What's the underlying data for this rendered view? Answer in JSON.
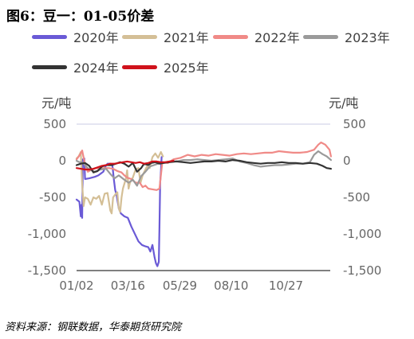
{
  "title": "图6：豆一：01-05价差",
  "source": "资料来源：钢联数据，华泰期货研究院",
  "chart_data": {
    "type": "line",
    "y_unit_left": "元/吨",
    "y_unit_right": "元/吨",
    "ylim": [
      -1500,
      500
    ],
    "yticks": [
      500,
      0,
      -500,
      -1000,
      -1500
    ],
    "ytick_labels": [
      "500",
      "0",
      "-500",
      "-1,000",
      "-1,500"
    ],
    "xlim": [
      2,
      363
    ],
    "xticks": [
      2,
      75,
      149,
      222,
      300
    ],
    "xtick_labels": [
      "01/02",
      "03/16",
      "05/29",
      "08/10",
      "10/27"
    ],
    "grid": false,
    "legend_position": "top",
    "series": [
      {
        "name": "2020年",
        "color": "#6a5ad6",
        "points": [
          [
            2,
            -530
          ],
          [
            6,
            -560
          ],
          [
            8,
            -760
          ],
          [
            9,
            -600
          ],
          [
            10,
            -780
          ],
          [
            11,
            20
          ],
          [
            13,
            30
          ],
          [
            14,
            -250
          ],
          [
            20,
            -240
          ],
          [
            28,
            -220
          ],
          [
            33,
            -200
          ],
          [
            40,
            -150
          ],
          [
            43,
            -80
          ],
          [
            46,
            -40
          ],
          [
            50,
            -40
          ],
          [
            53,
            -60
          ],
          [
            55,
            -250
          ],
          [
            57,
            -400
          ],
          [
            59,
            -470
          ],
          [
            62,
            -650
          ],
          [
            65,
            -720
          ],
          [
            70,
            -760
          ],
          [
            75,
            -780
          ],
          [
            80,
            -900
          ],
          [
            90,
            -1100
          ],
          [
            95,
            -1150
          ],
          [
            100,
            -1170
          ],
          [
            104,
            -1180
          ],
          [
            107,
            -1240
          ],
          [
            110,
            -1150
          ],
          [
            113,
            -1320
          ],
          [
            115,
            -1400
          ],
          [
            117,
            -1440
          ],
          [
            119,
            -1380
          ],
          [
            120,
            -900
          ],
          [
            121,
            -300
          ],
          [
            122,
            -150
          ],
          [
            123,
            50
          ]
        ]
      },
      {
        "name": "2021年",
        "color": "#d4bf96",
        "points": [
          [
            2,
            30
          ],
          [
            5,
            60
          ],
          [
            8,
            120
          ],
          [
            10,
            -320
          ],
          [
            12,
            -620
          ],
          [
            14,
            -500
          ],
          [
            18,
            -520
          ],
          [
            22,
            -600
          ],
          [
            26,
            -500
          ],
          [
            30,
            -520
          ],
          [
            34,
            -480
          ],
          [
            38,
            -600
          ],
          [
            42,
            -450
          ],
          [
            46,
            -440
          ],
          [
            50,
            -680
          ],
          [
            52,
            -720
          ],
          [
            54,
            -500
          ],
          [
            58,
            -450
          ],
          [
            60,
            -430
          ],
          [
            62,
            -650
          ],
          [
            64,
            -700
          ],
          [
            66,
            -500
          ],
          [
            68,
            -380
          ],
          [
            72,
            -250
          ],
          [
            74,
            -130
          ],
          [
            76,
            -380
          ],
          [
            78,
            -300
          ],
          [
            82,
            -230
          ],
          [
            86,
            -120
          ],
          [
            90,
            -100
          ],
          [
            93,
            -300
          ],
          [
            96,
            -200
          ],
          [
            99,
            -140
          ],
          [
            102,
            -80
          ],
          [
            106,
            -100
          ],
          [
            110,
            50
          ],
          [
            114,
            100
          ],
          [
            118,
            40
          ],
          [
            122,
            120
          ],
          [
            125,
            60
          ]
        ]
      },
      {
        "name": "2022年",
        "color": "#f08a87",
        "points": [
          [
            2,
            20
          ],
          [
            6,
            70
          ],
          [
            10,
            140
          ],
          [
            14,
            -50
          ],
          [
            18,
            -150
          ],
          [
            24,
            -120
          ],
          [
            30,
            -100
          ],
          [
            36,
            -110
          ],
          [
            42,
            -100
          ],
          [
            48,
            -100
          ],
          [
            54,
            -110
          ],
          [
            60,
            -140
          ],
          [
            66,
            -160
          ],
          [
            70,
            -200
          ],
          [
            74,
            -230
          ],
          [
            80,
            -250
          ],
          [
            86,
            -300
          ],
          [
            92,
            -300
          ],
          [
            96,
            -360
          ],
          [
            100,
            -340
          ],
          [
            104,
            -380
          ],
          [
            110,
            -390
          ],
          [
            116,
            -400
          ],
          [
            120,
            -380
          ],
          [
            124,
            -20
          ],
          [
            132,
            -30
          ],
          [
            140,
            20
          ],
          [
            150,
            40
          ],
          [
            160,
            80
          ],
          [
            170,
            60
          ],
          [
            180,
            80
          ],
          [
            190,
            70
          ],
          [
            200,
            90
          ],
          [
            210,
            80
          ],
          [
            220,
            70
          ],
          [
            230,
            90
          ],
          [
            240,
            100
          ],
          [
            250,
            90
          ],
          [
            260,
            100
          ],
          [
            270,
            110
          ],
          [
            280,
            110
          ],
          [
            290,
            130
          ],
          [
            300,
            120
          ],
          [
            310,
            110
          ],
          [
            320,
            110
          ],
          [
            330,
            120
          ],
          [
            340,
            150
          ],
          [
            346,
            220
          ],
          [
            350,
            250
          ],
          [
            356,
            220
          ],
          [
            362,
            150
          ],
          [
            364,
            60
          ]
        ]
      },
      {
        "name": "2023年",
        "color": "#9a9a9a",
        "points": [
          [
            2,
            0
          ],
          [
            6,
            -20
          ],
          [
            10,
            -20
          ],
          [
            14,
            -60
          ],
          [
            20,
            -120
          ],
          [
            28,
            -150
          ],
          [
            36,
            -120
          ],
          [
            44,
            -110
          ],
          [
            50,
            -180
          ],
          [
            56,
            -240
          ],
          [
            62,
            -200
          ],
          [
            70,
            -260
          ],
          [
            76,
            -300
          ],
          [
            82,
            -260
          ],
          [
            88,
            -340
          ],
          [
            94,
            -210
          ],
          [
            100,
            -150
          ],
          [
            106,
            -80
          ],
          [
            112,
            -60
          ],
          [
            118,
            -40
          ],
          [
            124,
            -30
          ],
          [
            134,
            -10
          ],
          [
            144,
            -10
          ],
          [
            154,
            10
          ],
          [
            164,
            10
          ],
          [
            174,
            20
          ],
          [
            184,
            10
          ],
          [
            194,
            0
          ],
          [
            204,
            10
          ],
          [
            214,
            20
          ],
          [
            224,
            30
          ],
          [
            234,
            -10
          ],
          [
            244,
            -30
          ],
          [
            254,
            -60
          ],
          [
            264,
            -80
          ],
          [
            274,
            -70
          ],
          [
            284,
            -60
          ],
          [
            294,
            -60
          ],
          [
            304,
            -50
          ],
          [
            314,
            -40
          ],
          [
            324,
            -40
          ],
          [
            334,
            -20
          ],
          [
            340,
            80
          ],
          [
            346,
            130
          ],
          [
            352,
            90
          ],
          [
            358,
            60
          ],
          [
            364,
            10
          ]
        ]
      },
      {
        "name": "2024年",
        "color": "#333333",
        "points": [
          [
            2,
            -60
          ],
          [
            8,
            -40
          ],
          [
            14,
            -30
          ],
          [
            20,
            -70
          ],
          [
            26,
            -160
          ],
          [
            32,
            -140
          ],
          [
            38,
            -80
          ],
          [
            44,
            -60
          ],
          [
            52,
            -60
          ],
          [
            58,
            -40
          ],
          [
            64,
            -20
          ],
          [
            70,
            -40
          ],
          [
            76,
            -80
          ],
          [
            82,
            -30
          ],
          [
            88,
            -150
          ],
          [
            94,
            -100
          ],
          [
            98,
            -40
          ],
          [
            104,
            -60
          ],
          [
            108,
            -30
          ],
          [
            114,
            -20
          ],
          [
            120,
            -40
          ],
          [
            126,
            -30
          ],
          [
            134,
            -20
          ],
          [
            144,
            -10
          ],
          [
            154,
            -20
          ],
          [
            164,
            -30
          ],
          [
            174,
            -20
          ],
          [
            184,
            -10
          ],
          [
            194,
            -10
          ],
          [
            204,
            0
          ],
          [
            214,
            -10
          ],
          [
            224,
            10
          ],
          [
            234,
            0
          ],
          [
            244,
            -20
          ],
          [
            254,
            -30
          ],
          [
            264,
            -40
          ],
          [
            274,
            -30
          ],
          [
            284,
            -30
          ],
          [
            294,
            -20
          ],
          [
            304,
            -30
          ],
          [
            314,
            -30
          ],
          [
            324,
            -40
          ],
          [
            334,
            -30
          ],
          [
            344,
            -40
          ],
          [
            352,
            -70
          ],
          [
            358,
            -100
          ],
          [
            364,
            -110
          ]
        ]
      },
      {
        "name": "2025年",
        "color": "#d0121b",
        "points": [
          [
            2,
            -100
          ],
          [
            8,
            -110
          ],
          [
            14,
            -120
          ],
          [
            20,
            -120
          ],
          [
            26,
            -110
          ],
          [
            32,
            -90
          ],
          [
            38,
            -70
          ],
          [
            44,
            -60
          ],
          [
            50,
            -40
          ],
          [
            56,
            -40
          ],
          [
            62,
            -30
          ],
          [
            68,
            -20
          ],
          [
            74,
            -10
          ],
          [
            80,
            -20
          ],
          [
            86,
            -30
          ],
          [
            92,
            -20
          ],
          [
            98,
            -40
          ],
          [
            104,
            -30
          ],
          [
            110,
            -10
          ],
          [
            116,
            -10
          ],
          [
            122,
            -20
          ],
          [
            128,
            -20
          ],
          [
            134,
            -10
          ],
          [
            140,
            0
          ]
        ]
      }
    ]
  }
}
